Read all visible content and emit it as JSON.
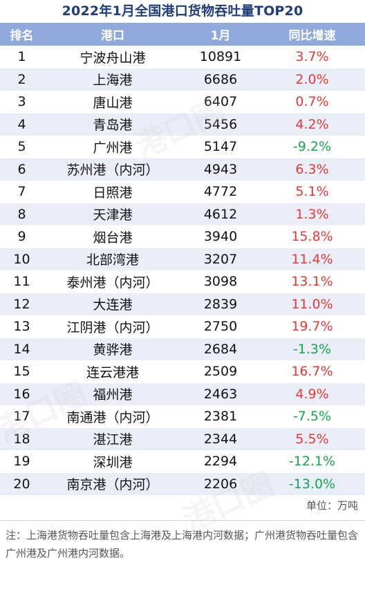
{
  "title": "2022年1月全国港口货物吞吐量TOP20",
  "header": {
    "rank": "排名",
    "port": "港口",
    "month": "1月",
    "yoy": "同比增速"
  },
  "rows": [
    {
      "rank": "1",
      "port": "宁波舟山港",
      "value": "10891",
      "yoy": "3.7%",
      "trend": "pos"
    },
    {
      "rank": "2",
      "port": "上海港",
      "value": "6686",
      "yoy": "2.0%",
      "trend": "pos"
    },
    {
      "rank": "3",
      "port": "唐山港",
      "value": "6407",
      "yoy": "0.7%",
      "trend": "pos"
    },
    {
      "rank": "4",
      "port": "青岛港",
      "value": "5456",
      "yoy": "4.2%",
      "trend": "pos"
    },
    {
      "rank": "5",
      "port": "广州港",
      "value": "5147",
      "yoy": "-9.2%",
      "trend": "neg"
    },
    {
      "rank": "6",
      "port": "苏州港（内河）",
      "value": "4943",
      "yoy": "6.3%",
      "trend": "pos"
    },
    {
      "rank": "7",
      "port": "日照港",
      "value": "4772",
      "yoy": "5.1%",
      "trend": "pos"
    },
    {
      "rank": "8",
      "port": "天津港",
      "value": "4612",
      "yoy": "1.3%",
      "trend": "pos"
    },
    {
      "rank": "9",
      "port": "烟台港",
      "value": "3940",
      "yoy": "15.8%",
      "trend": "pos"
    },
    {
      "rank": "10",
      "port": "北部湾港",
      "value": "3207",
      "yoy": "11.4%",
      "trend": "pos"
    },
    {
      "rank": "11",
      "port": "泰州港（内河）",
      "value": "3098",
      "yoy": "13.1%",
      "trend": "pos"
    },
    {
      "rank": "12",
      "port": "大连港",
      "value": "2839",
      "yoy": "11.0%",
      "trend": "pos"
    },
    {
      "rank": "13",
      "port": "江阴港（内河）",
      "value": "2750",
      "yoy": "19.7%",
      "trend": "pos"
    },
    {
      "rank": "14",
      "port": "黄骅港",
      "value": "2684",
      "yoy": "-1.3%",
      "trend": "neg"
    },
    {
      "rank": "15",
      "port": "连云港港",
      "value": "2509",
      "yoy": "16.7%",
      "trend": "pos"
    },
    {
      "rank": "16",
      "port": "福州港",
      "value": "2463",
      "yoy": "4.9%",
      "trend": "pos"
    },
    {
      "rank": "17",
      "port": "南通港（内河）",
      "value": "2381",
      "yoy": "-7.5%",
      "trend": "neg"
    },
    {
      "rank": "18",
      "port": "湛江港",
      "value": "2344",
      "yoy": "5.5%",
      "trend": "pos"
    },
    {
      "rank": "19",
      "port": "深圳港",
      "value": "2294",
      "yoy": "-12.1%",
      "trend": "neg"
    },
    {
      "rank": "20",
      "port": "南京港（内河）",
      "value": "2206",
      "yoy": "-13.0%",
      "trend": "neg"
    }
  ],
  "unit": "单位：万吨",
  "note": "注：上海港货物吞吐量包含上海港及上海港内河数据；广州港货物吞吐量包含广州港及广州港内河数据。",
  "watermark": "港口圈",
  "colors": {
    "title": "#1f3d7a",
    "header_bg": "#8fa9dc",
    "stripe": "#e9eef8",
    "positive": "#e53935",
    "negative": "#13a64a"
  }
}
